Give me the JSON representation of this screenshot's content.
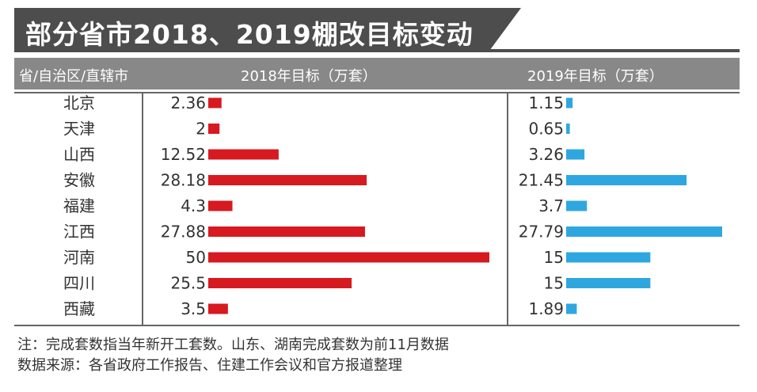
{
  "title": "部分省市2018、2019棚改目标变动",
  "header": {
    "col1": "省/自治区/直辖市",
    "col2": "2018年目标（万套）",
    "col3": "2019年目标（万套）"
  },
  "colors": {
    "bar2018": "#d71920",
    "bar2019": "#2ea7e0",
    "title_bg": "#4d4d4d",
    "header_bg": "#888888"
  },
  "chart_data": {
    "type": "bar",
    "categories": [
      "北京",
      "天津",
      "山西",
      "安徽",
      "福建",
      "江西",
      "河南",
      "四川",
      "西藏"
    ],
    "series": [
      {
        "name": "2018年目标（万套）",
        "values": [
          2.36,
          2,
          12.52,
          28.18,
          4.3,
          27.88,
          50,
          25.5,
          3.5
        ],
        "labels": [
          "2.36",
          "2",
          "12.52",
          "28.18",
          "4.3",
          "27.88",
          "50",
          "25.5",
          "3.5"
        ]
      },
      {
        "name": "2019年目标（万套）",
        "values": [
          1.15,
          0.65,
          3.26,
          21.45,
          3.7,
          27.79,
          15,
          15,
          1.89
        ],
        "labels": [
          "1.15",
          "0.65",
          "3.26",
          "21.45",
          "3.7",
          "27.79",
          "15",
          "15",
          "1.89"
        ]
      }
    ],
    "orientation": "horizontal"
  },
  "notes": {
    "line1": "注：完成套数指当年新开工套数。山东、湖南完成套数为前11月数据",
    "line2": "数据来源：各省政府工作报告、住建工作会议和官方报道整理"
  }
}
